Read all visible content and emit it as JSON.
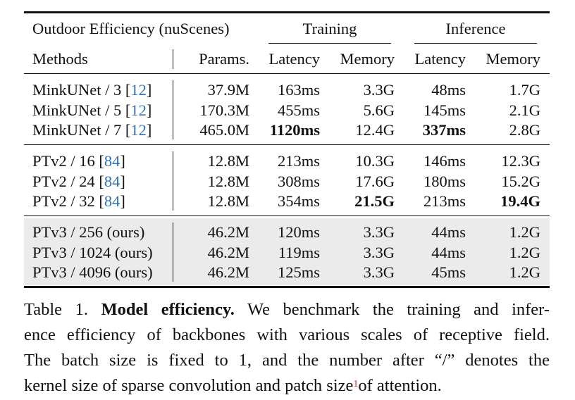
{
  "table": {
    "corner_title": "Outdoor Efficiency (nuScenes)",
    "group_training": "Training",
    "group_inference": "Inference",
    "columns": [
      "Methods",
      "Params.",
      "Latency",
      "Memory",
      "Latency",
      "Memory"
    ],
    "groups": [
      {
        "rows": [
          {
            "method": "MinkUNet / 3 [",
            "cite": "12",
            "close": "]",
            "params": "37.9M",
            "train_latency": "163ms",
            "train_memory": "3.3G",
            "inf_latency": "48ms",
            "inf_memory": "1.7G"
          },
          {
            "method": "MinkUNet / 5 [",
            "cite": "12",
            "close": "]",
            "params": "170.3M",
            "train_latency": "455ms",
            "train_memory": "5.6G",
            "inf_latency": "145ms",
            "inf_memory": "2.1G"
          },
          {
            "method": "MinkUNet / 7 [",
            "cite": "12",
            "close": "]",
            "params": "465.0M",
            "train_latency": "1120ms",
            "train_memory": "12.4G",
            "inf_latency": "337ms",
            "inf_memory": "2.8G"
          }
        ]
      },
      {
        "rows": [
          {
            "method": "PTv2 / 16 [",
            "cite": "84",
            "close": "]",
            "params": "12.8M",
            "train_latency": "213ms",
            "train_memory": "10.3G",
            "inf_latency": "146ms",
            "inf_memory": "12.3G"
          },
          {
            "method": "PTv2 / 24 [",
            "cite": "84",
            "close": "]",
            "params": "12.8M",
            "train_latency": "308ms",
            "train_memory": "17.6G",
            "inf_latency": "180ms",
            "inf_memory": "15.2G"
          },
          {
            "method": "PTv2 / 32 [",
            "cite": "84",
            "close": "]",
            "params": "12.8M",
            "train_latency": "354ms",
            "train_memory": "21.5G",
            "inf_latency": "213ms",
            "inf_memory": "19.4G"
          }
        ]
      },
      {
        "rows": [
          {
            "method": "PTv3 / 256 (ours)",
            "cite": "",
            "close": "",
            "params": "46.2M",
            "train_latency": "120ms",
            "train_memory": "3.3G",
            "inf_latency": "44ms",
            "inf_memory": "1.2G"
          },
          {
            "method": "PTv3 / 1024 (ours)",
            "cite": "",
            "close": "",
            "params": "46.2M",
            "train_latency": "119ms",
            "train_memory": "3.3G",
            "inf_latency": "44ms",
            "inf_memory": "1.2G"
          },
          {
            "method": "PTv3 / 4096 (ours)",
            "cite": "",
            "close": "",
            "params": "46.2M",
            "train_latency": "125ms",
            "train_memory": "3.3G",
            "inf_latency": "45ms",
            "inf_memory": "1.2G"
          }
        ]
      }
    ]
  },
  "caption": {
    "label": "Table 1.",
    "bold_title": "Model efficiency.",
    "line1_rest": "We benchmark the training and infer-",
    "line2": "ence efficiency of backbones with various scales of receptive field.",
    "line3": "The batch size is fixed to 1, and the number after “/” denotes the",
    "line4_a": "kernel size of sparse convolution and patch size",
    "footnote_mark": "1",
    "line4_b": "of attention."
  },
  "colors": {
    "citation": "#2f6fb3",
    "footnote": "#d42a2a",
    "ours_shade": "#ebebeb"
  }
}
